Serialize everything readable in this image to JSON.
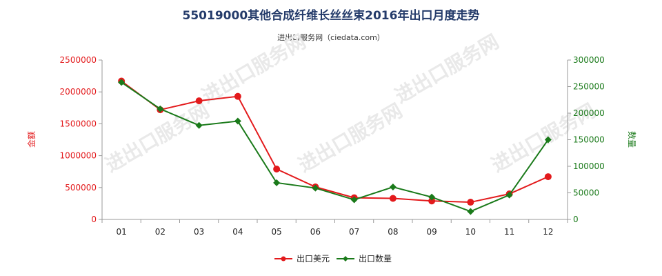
{
  "title": "55019000其他合成纤维长丝丝束2016年出口月度走势",
  "subtitle": "进出口服务网（ciedata.com）",
  "watermark": "进出口服务网",
  "chart_data": {
    "type": "line",
    "categories": [
      "01",
      "02",
      "03",
      "04",
      "05",
      "06",
      "07",
      "08",
      "09",
      "10",
      "11",
      "12"
    ],
    "y_left": {
      "label": "金额",
      "ylim": [
        0,
        2500000
      ],
      "ticks": [
        0,
        500000,
        1000000,
        1500000,
        2000000,
        2500000
      ],
      "tick_labels": [
        "0",
        "500000",
        "1000000",
        "1500000",
        "2000000",
        "2500000"
      ],
      "color": "#e31a1c"
    },
    "y_right": {
      "label": "数量",
      "ylim": [
        0,
        300000
      ],
      "ticks": [
        0,
        50000,
        100000,
        150000,
        200000,
        250000,
        300000
      ],
      "tick_labels": [
        "0",
        "50000",
        "100000",
        "150000",
        "200000",
        "250000",
        "300000"
      ],
      "color": "#1a7a1a"
    },
    "series": [
      {
        "name": "出口美元",
        "axis": "left",
        "color": "#e31a1c",
        "marker": "circle",
        "values": [
          2170000,
          1720000,
          1860000,
          1930000,
          790000,
          510000,
          340000,
          330000,
          290000,
          270000,
          400000,
          670000
        ]
      },
      {
        "name": "出口数量",
        "axis": "right",
        "color": "#1a7a1a",
        "marker": "diamond",
        "values": [
          258000,
          208000,
          177000,
          185000,
          69000,
          59000,
          37000,
          61000,
          42000,
          15000,
          46000,
          150000
        ]
      }
    ],
    "legend_position": "bottom-center",
    "grid": false
  }
}
